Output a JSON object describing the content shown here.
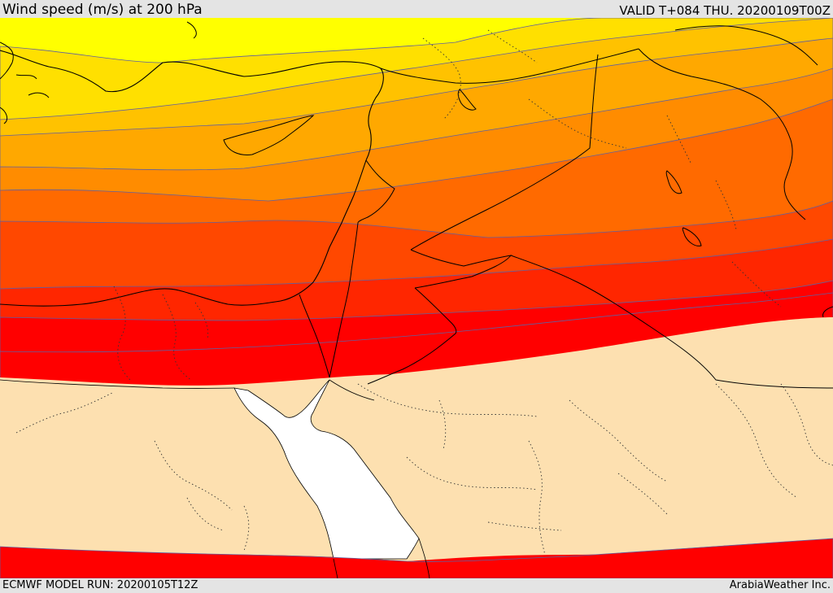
{
  "header": {
    "title": "Wind speed (m/s) at 200 hPa",
    "valid": "VALID T+084 THU. 20200109T00Z"
  },
  "footer": {
    "model_run": "ECMWF MODEL RUN: 20200105T12Z",
    "credit": "ArabiaWeather Inc."
  },
  "palette": {
    "band_1": "#ffff00",
    "band_2": "#ffe000",
    "band_3": "#ffc200",
    "band_4": "#ffa800",
    "band_5": "#ff8c00",
    "band_6": "#ff6a00",
    "band_7": "#ff4800",
    "band_8": "#ff2600",
    "band_9": "#ff0000",
    "calm": "#fde0b0",
    "sea": "#ffffff",
    "coast": "#000000",
    "border": "#000000",
    "contour": "#6060a0"
  }
}
